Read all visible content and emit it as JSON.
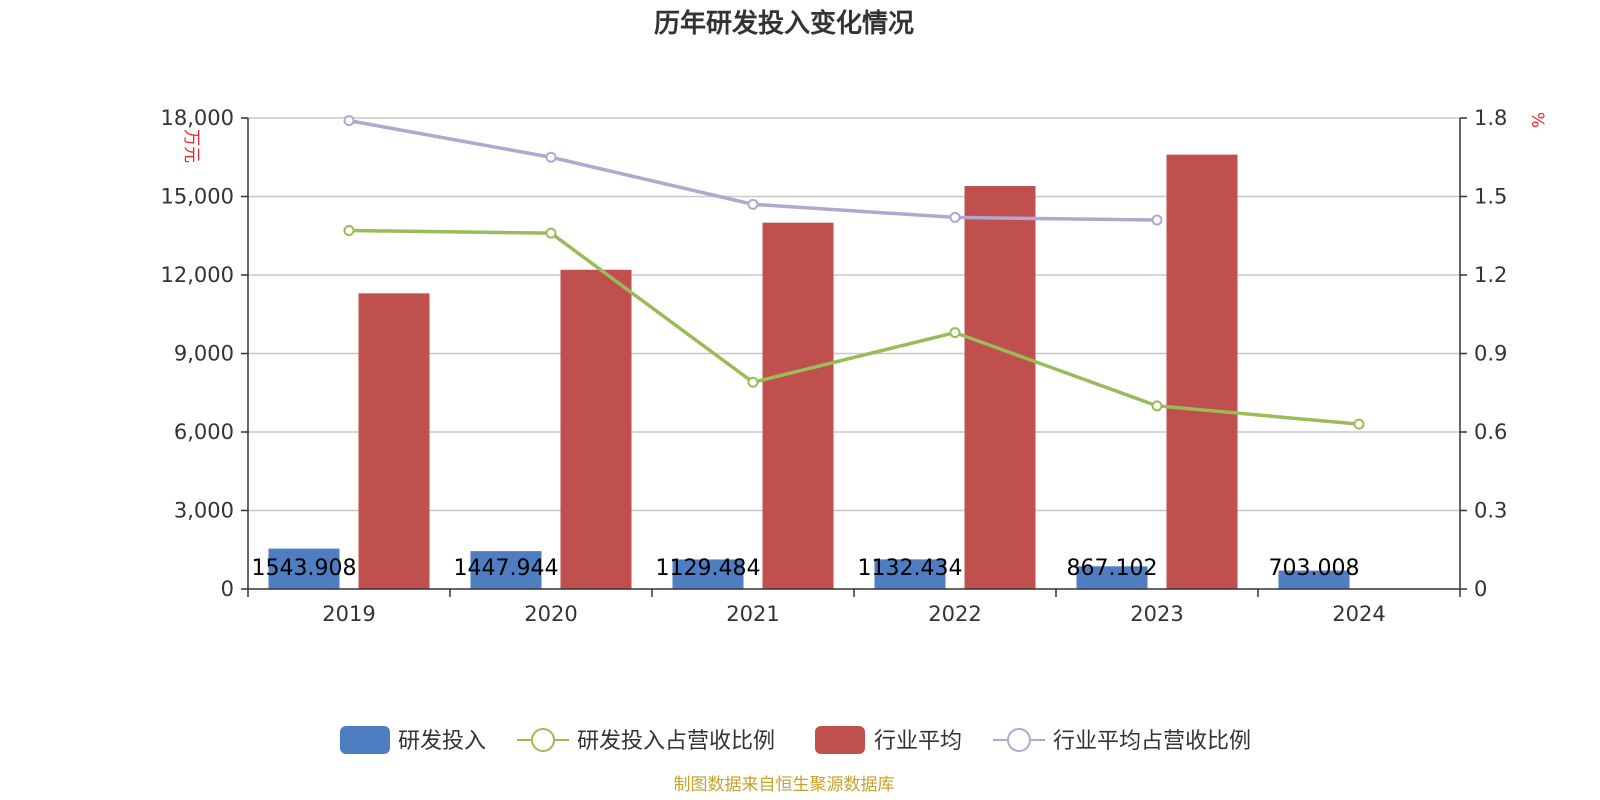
{
  "chart_data": {
    "type": "bar",
    "title": "历年研发投入变化情况",
    "categories": [
      "2019",
      "2020",
      "2021",
      "2022",
      "2023",
      "2024"
    ],
    "left_axis": {
      "unit": "万元",
      "ylim": [
        0,
        18000
      ],
      "ticks": [
        "0",
        "3,000",
        "6,000",
        "9,000",
        "12,000",
        "15,000",
        "18,000"
      ]
    },
    "right_axis": {
      "unit": "%",
      "ylim": [
        0,
        1.8
      ],
      "ticks": [
        "0",
        "0.3",
        "0.6",
        "0.9",
        "1.2",
        "1.5",
        "1.8"
      ]
    },
    "grid": true,
    "legend_position": "bottom",
    "series": [
      {
        "name": "研发投入",
        "kind": "bar",
        "axis": "left",
        "color": "#4e7ec1",
        "values": [
          1543.908,
          1447.944,
          1129.484,
          1132.434,
          867.102,
          703.008
        ],
        "labels": [
          "1543.908",
          "1447.944",
          "1129.484",
          "1132.434",
          "867.102",
          "703.008"
        ]
      },
      {
        "name": "研发投入占营收比例",
        "kind": "line",
        "axis": "right",
        "color": "#9bbb59",
        "values": [
          1.37,
          1.36,
          0.79,
          0.98,
          0.7,
          0.63
        ]
      },
      {
        "name": "行业平均",
        "kind": "bar",
        "axis": "left",
        "color": "#c0504d",
        "values": [
          11300,
          12200,
          14000,
          15400,
          16600,
          null
        ]
      },
      {
        "name": "行业平均占营收比例",
        "kind": "line",
        "axis": "right",
        "color": "#b3a6cf",
        "values": [
          1.79,
          1.65,
          1.47,
          1.42,
          1.41,
          null
        ]
      }
    ]
  },
  "source_text": "制图数据来自恒生聚源数据库",
  "source_color": "#c9a227"
}
